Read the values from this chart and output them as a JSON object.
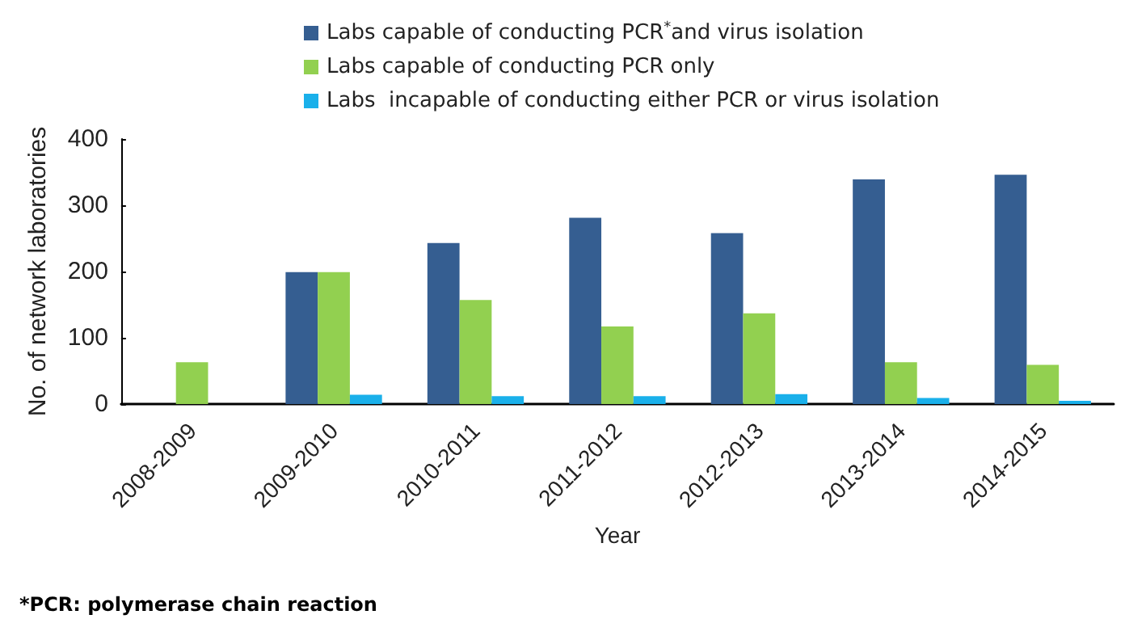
{
  "chart_data": {
    "type": "bar",
    "xlabel": "Year",
    "ylabel": "No. of network laboratories",
    "categories": [
      "2008-2009",
      "2009-2010",
      "2010-2011",
      "2011-2012",
      "2012-2013",
      "2013-2014",
      "2014-2015"
    ],
    "series": [
      {
        "name": "Labs capable of conducting PCR$^{*}$and virus isolation",
        "color": "#355e91",
        "values": [
          null,
          199,
          243,
          281,
          258,
          339,
          346
        ]
      },
      {
        "name": "Labs capable of conducting PCR only",
        "color": "#92d050",
        "values": [
          63,
          199,
          157,
          117,
          137,
          63,
          59
        ]
      },
      {
        "name": "Labs  incapable of conducting either PCR or virus isolation",
        "color": "#1ab0ea",
        "values": [
          null,
          14,
          12,
          12,
          15,
          9,
          5
        ]
      }
    ],
    "ylim": [
      0,
      400
    ],
    "yticks": [
      0,
      100,
      200,
      300,
      400
    ],
    "grid": false,
    "legend": "top left",
    "annotations": [
      "*PCR: polymerase chain reaction"
    ]
  }
}
